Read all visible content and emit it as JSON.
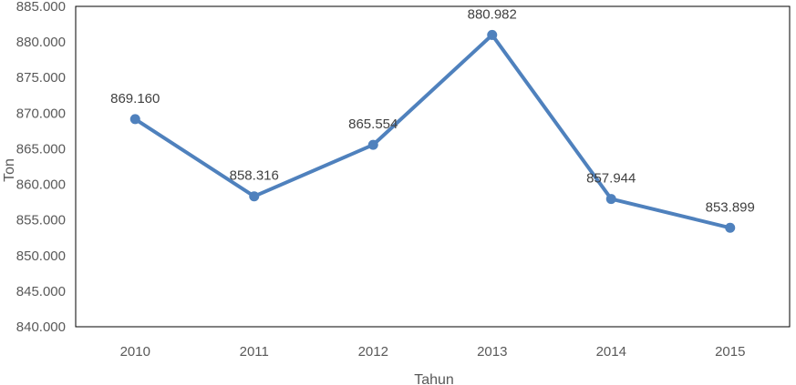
{
  "chart_data": {
    "type": "line",
    "title": "",
    "xlabel": "Tahun",
    "ylabel": "Ton",
    "categories": [
      "2010",
      "2011",
      "2012",
      "2013",
      "2014",
      "2015"
    ],
    "series": [
      {
        "values": [
          869.16,
          858.316,
          865.554,
          880.982,
          857.944,
          853.899
        ],
        "data_labels": [
          "869.160",
          "858.316",
          "865.554",
          "880.982",
          "857.944",
          "853.899"
        ]
      }
    ],
    "ylim": [
      840,
      885
    ],
    "yticks": [
      840,
      845,
      850,
      855,
      860,
      865,
      870,
      875,
      880,
      885
    ],
    "ytick_labels": [
      "840.000",
      "845.000",
      "850.000",
      "855.000",
      "860.000",
      "865.000",
      "870.000",
      "875.000",
      "880.000",
      "885.000"
    ],
    "grid": false,
    "legend": "none",
    "colors": {
      "line": "#4f81bd",
      "frame": "#000000",
      "text": "#595959"
    }
  }
}
